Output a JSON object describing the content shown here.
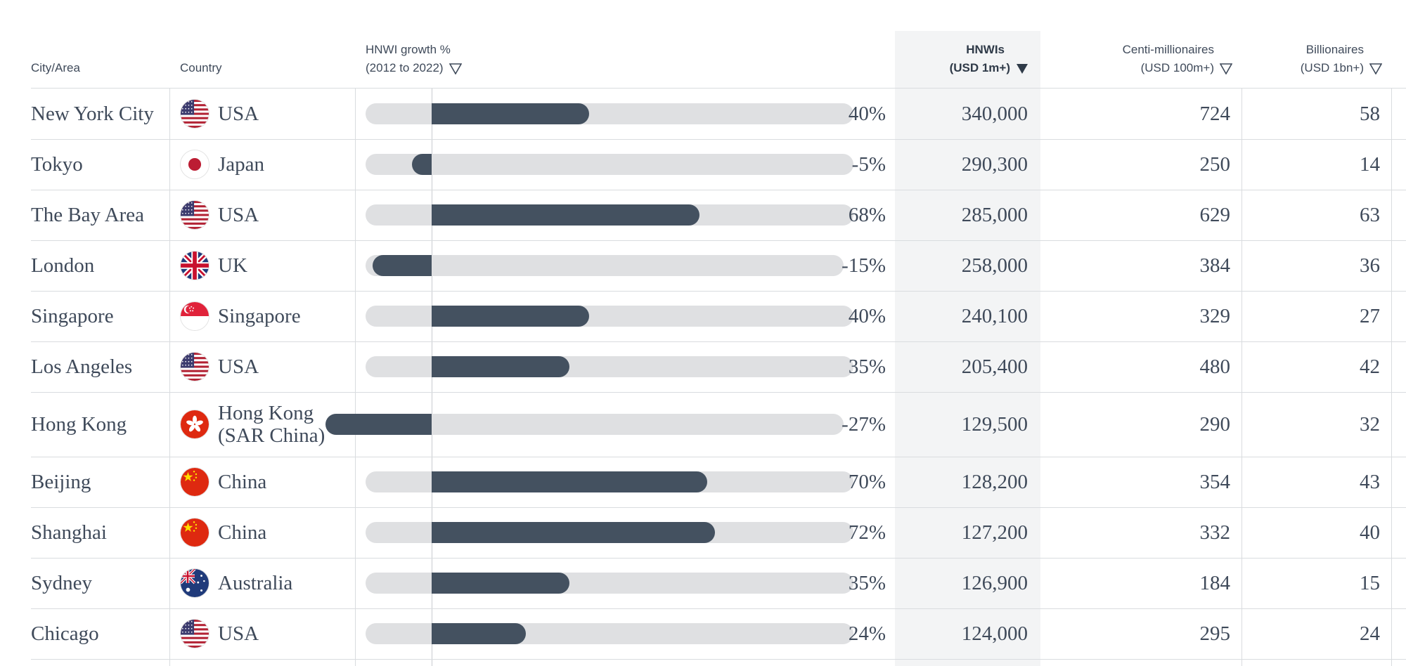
{
  "headers": {
    "city": "City/Area",
    "country": "Country",
    "growth_line1": "HNWI growth %",
    "growth_line2": "(2012 to 2022)",
    "hnwis_line1": "HNWIs",
    "hnwis_line2": "(USD 1m+)",
    "centi_line1": "Centi-millionaires",
    "centi_line2": "(USD 100m+)",
    "billion_line1": "Billionaires",
    "billion_line2": "(USD 1bn+)"
  },
  "sort": {
    "column": "HNWIs",
    "direction": "descending"
  },
  "colors": {
    "bar": "#445160",
    "track": "#dfe0e2",
    "text": "#3f4a5a",
    "sorted_column_bg": "#f3f4f5"
  },
  "chart_data": {
    "type": "table",
    "columns": [
      "City/Area",
      "Country",
      "HNWI growth % (2012 to 2022)",
      "HNWIs (USD 1m+)",
      "Centi-millionaires (USD 100m+)",
      "Billionaires (USD 1bn+)"
    ],
    "rows": [
      {
        "city": "New York City",
        "country": "USA",
        "country_line2": "",
        "flag": "usa-flag-icon",
        "growth": 40,
        "growth_label": "40%",
        "hnwis": "340,000",
        "centi": "724",
        "billionaires": "58"
      },
      {
        "city": "Tokyo",
        "country": "Japan",
        "country_line2": "",
        "flag": "japan-flag-icon",
        "growth": -5,
        "growth_label": "-5%",
        "hnwis": "290,300",
        "centi": "250",
        "billionaires": "14"
      },
      {
        "city": "The Bay Area",
        "country": "USA",
        "country_line2": "",
        "flag": "usa-flag-icon",
        "growth": 68,
        "growth_label": "68%",
        "hnwis": "285,000",
        "centi": "629",
        "billionaires": "63"
      },
      {
        "city": "London",
        "country": "UK",
        "country_line2": "",
        "flag": "uk-flag-icon",
        "growth": -15,
        "growth_label": "-15%",
        "hnwis": "258,000",
        "centi": "384",
        "billionaires": "36"
      },
      {
        "city": "Singapore",
        "country": "Singapore",
        "country_line2": "",
        "flag": "singapore-flag-icon",
        "growth": 40,
        "growth_label": "40%",
        "hnwis": "240,100",
        "centi": "329",
        "billionaires": "27"
      },
      {
        "city": "Los Angeles",
        "country": "USA",
        "country_line2": "",
        "flag": "usa-flag-icon",
        "growth": 35,
        "growth_label": "35%",
        "hnwis": "205,400",
        "centi": "480",
        "billionaires": "42"
      },
      {
        "city": "Hong Kong",
        "country": "Hong Kong",
        "country_line2": "(SAR China)",
        "flag": "hong-kong-flag-icon",
        "growth": -27,
        "growth_label": "-27%",
        "hnwis": "129,500",
        "centi": "290",
        "billionaires": "32"
      },
      {
        "city": "Beijing",
        "country": "China",
        "country_line2": "",
        "flag": "china-flag-icon",
        "growth": 70,
        "growth_label": "70%",
        "hnwis": "128,200",
        "centi": "354",
        "billionaires": "43"
      },
      {
        "city": "Shanghai",
        "country": "China",
        "country_line2": "",
        "flag": "china-flag-icon",
        "growth": 72,
        "growth_label": "72%",
        "hnwis": "127,200",
        "centi": "332",
        "billionaires": "40"
      },
      {
        "city": "Sydney",
        "country": "Australia",
        "country_line2": "",
        "flag": "australia-flag-icon",
        "growth": 35,
        "growth_label": "35%",
        "hnwis": "126,900",
        "centi": "184",
        "billionaires": "15"
      },
      {
        "city": "Chicago",
        "country": "USA",
        "country_line2": "",
        "flag": "usa-flag-icon",
        "growth": 24,
        "growth_label": "24%",
        "hnwis": "124,000",
        "centi": "295",
        "billionaires": "24"
      }
    ]
  }
}
